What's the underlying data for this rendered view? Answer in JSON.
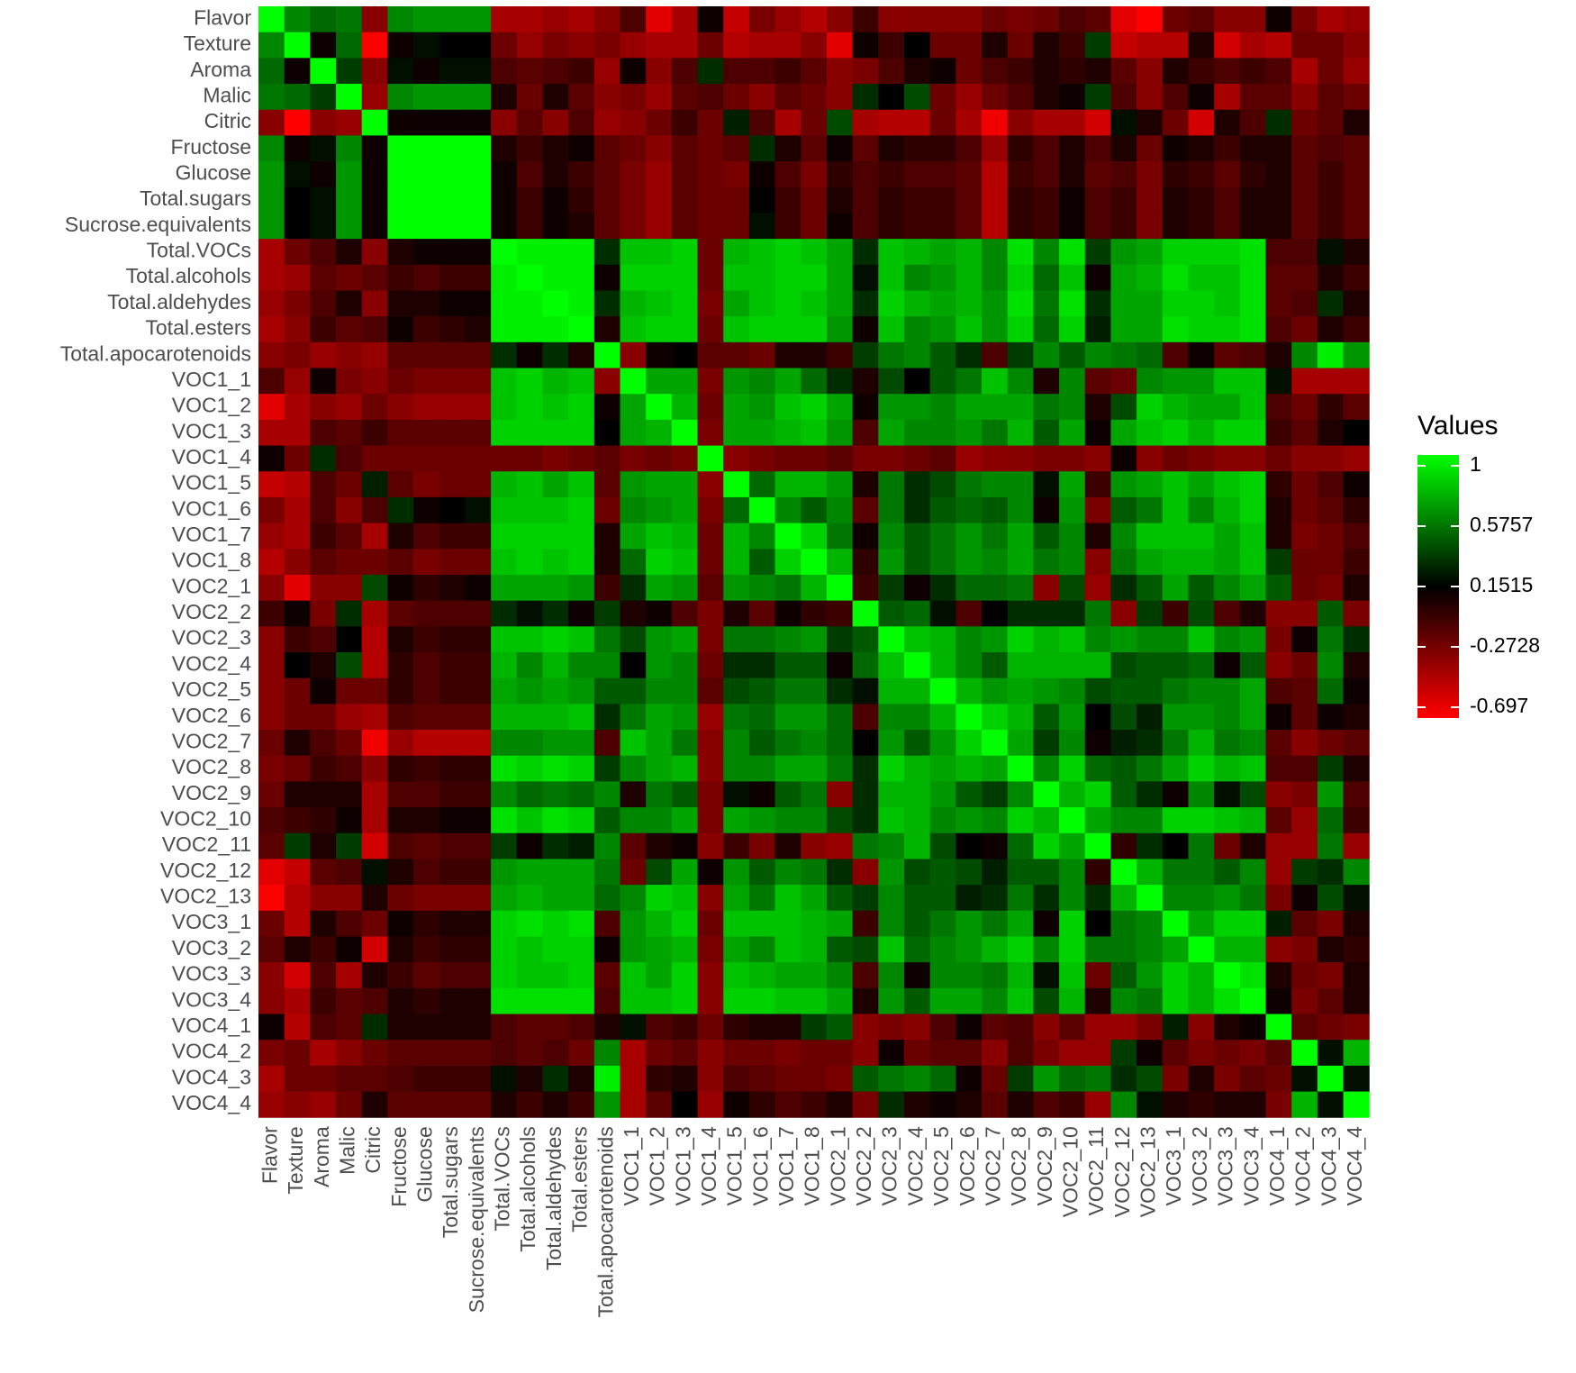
{
  "chart_data": {
    "type": "heatmap",
    "categories": [
      "Flavor",
      "Texture",
      "Aroma",
      "Malic",
      "Citric",
      "Fructose",
      "Glucose",
      "Total.sugars",
      "Sucrose.equivalents",
      "Total.VOCs",
      "Total.alcohols",
      "Total.aldehydes",
      "Total.esters",
      "Total.apocarotenoids",
      "VOC1_1",
      "VOC1_2",
      "VOC1_3",
      "VOC1_4",
      "VOC1_5",
      "VOC1_6",
      "VOC1_7",
      "VOC1_8",
      "VOC2_1",
      "VOC2_2",
      "VOC2_3",
      "VOC2_4",
      "VOC2_5",
      "VOC2_6",
      "VOC2_7",
      "VOC2_8",
      "VOC2_9",
      "VOC2_10",
      "VOC2_11",
      "VOC2_12",
      "VOC2_13",
      "VOC3_1",
      "VOC3_2",
      "VOC3_3",
      "VOC3_4",
      "VOC4_1",
      "VOC4_2",
      "VOC4_3",
      "VOC4_4"
    ],
    "values": [
      [
        1,
        0.6,
        0.5,
        0.55,
        -0.3,
        0.6,
        0.65,
        0.65,
        0.65,
        -0.4,
        -0.4,
        -0.35,
        -0.4,
        -0.3,
        -0.1,
        -0.6,
        -0.4,
        0.1,
        -0.5,
        -0.25,
        -0.35,
        -0.45,
        -0.3,
        -0.05,
        -0.3,
        -0.3,
        -0.3,
        -0.3,
        -0.2,
        -0.25,
        -0.2,
        -0.1,
        -0.15,
        -0.6,
        -0.7,
        -0.2,
        -0.15,
        -0.3,
        -0.3,
        0.1,
        -0.25,
        -0.4,
        -0.35
      ],
      [
        1,
        0.1,
        0.5,
        -0.7,
        0.1,
        0.2,
        0.15,
        0.15,
        -0.2,
        -0.35,
        -0.25,
        -0.3,
        -0.25,
        -0.35,
        -0.4,
        -0.4,
        -0.2,
        -0.45,
        -0.4,
        -0.4,
        -0.3,
        -0.6,
        0.1,
        -0.05,
        0.15,
        -0.2,
        -0.2,
        0.05,
        -0.2,
        0.05,
        -0.05,
        0.35,
        -0.5,
        -0.45,
        -0.45,
        0.05,
        -0.55,
        -0.4,
        -0.45,
        -0.2,
        -0.2,
        -0.3
      ],
      [
        1,
        0.35,
        -0.3,
        0.2,
        0.1,
        0.2,
        0.2,
        -0.1,
        -0.15,
        -0.1,
        -0.05,
        -0.35,
        0.1,
        -0.3,
        -0.1,
        0.3,
        -0.1,
        -0.1,
        -0.05,
        -0.15,
        -0.3,
        -0.25,
        -0.1,
        0.05,
        0.1,
        -0.2,
        -0.1,
        -0.05,
        0.05,
        0,
        0.05,
        -0.15,
        -0.3,
        0.05,
        -0.05,
        -0.1,
        -0.05,
        -0.1,
        -0.4,
        -0.2,
        -0.35
      ],
      [
        1,
        -0.35,
        0.6,
        0.65,
        0.65,
        0.65,
        0.05,
        -0.2,
        0.05,
        -0.15,
        -0.3,
        -0.25,
        -0.35,
        -0.15,
        -0.1,
        -0.2,
        -0.3,
        -0.15,
        -0.2,
        -0.3,
        0.3,
        0.15,
        0.4,
        -0.2,
        -0.35,
        -0.2,
        -0.1,
        0.05,
        0.1,
        0.35,
        -0.1,
        -0.3,
        -0.1,
        0.1,
        -0.4,
        -0.15,
        -0.15,
        -0.3,
        -0.15,
        -0.2
      ],
      [
        1,
        0.1,
        0.1,
        0.1,
        0.1,
        -0.3,
        -0.15,
        -0.3,
        -0.1,
        -0.35,
        -0.3,
        -0.2,
        -0.05,
        -0.2,
        0.25,
        -0.1,
        -0.4,
        -0.2,
        0.4,
        -0.4,
        -0.45,
        -0.45,
        -0.2,
        -0.4,
        -0.65,
        -0.3,
        -0.4,
        -0.4,
        -0.55,
        0.2,
        0.05,
        -0.2,
        -0.55,
        0.05,
        -0.1,
        0.3,
        -0.2,
        -0.15,
        0.05
      ],
      [
        1,
        1,
        1,
        1,
        0.05,
        -0.05,
        0.05,
        0.1,
        -0.15,
        -0.2,
        -0.3,
        -0.15,
        -0.2,
        -0.15,
        0.3,
        0.05,
        -0.15,
        0.1,
        -0.15,
        0.05,
        0,
        0,
        -0.1,
        -0.35,
        0,
        -0.1,
        0.05,
        -0.1,
        0.05,
        -0.2,
        0.1,
        0.05,
        -0.05,
        0.05,
        0.05,
        -0.15,
        -0.1,
        -0.15
      ],
      [
        1,
        1,
        1,
        0.1,
        -0.1,
        0.05,
        -0.05,
        -0.15,
        -0.25,
        -0.35,
        -0.15,
        -0.2,
        -0.25,
        0.1,
        -0.1,
        -0.25,
        0,
        -0.1,
        -0.05,
        -0.1,
        -0.1,
        -0.15,
        -0.45,
        -0.05,
        -0.1,
        0.05,
        -0.15,
        -0.1,
        -0.25,
        0,
        -0.05,
        -0.15,
        0,
        0.05,
        -0.15,
        -0.05,
        -0.15
      ],
      [
        1,
        1,
        0.1,
        -0.05,
        0.1,
        0,
        -0.15,
        -0.25,
        -0.35,
        -0.15,
        -0.2,
        -0.2,
        0.15,
        -0.05,
        -0.2,
        0.05,
        -0.1,
        0,
        -0.05,
        -0.05,
        -0.15,
        -0.45,
        0,
        -0.05,
        0.1,
        -0.1,
        -0.05,
        -0.25,
        0.05,
        0,
        -0.1,
        0.05,
        0.05,
        -0.15,
        -0.05,
        -0.15
      ],
      [
        1,
        0.1,
        -0.05,
        0.1,
        0.05,
        -0.15,
        -0.25,
        -0.35,
        -0.15,
        -0.2,
        -0.2,
        0.2,
        -0.05,
        -0.2,
        0.1,
        -0.1,
        0,
        -0.05,
        -0.05,
        -0.15,
        -0.45,
        0,
        -0.05,
        0.1,
        -0.1,
        -0.05,
        -0.25,
        0.05,
        0,
        -0.1,
        0.05,
        0.05,
        -0.15,
        -0.05,
        -0.15
      ],
      [
        1,
        0.95,
        0.95,
        0.95,
        0.3,
        0.8,
        0.8,
        0.85,
        -0.2,
        0.75,
        0.8,
        0.85,
        0.8,
        0.7,
        0.3,
        0.8,
        0.75,
        0.7,
        0.75,
        0.6,
        0.9,
        0.6,
        0.9,
        0.35,
        0.65,
        0.7,
        0.85,
        0.85,
        0.85,
        0.9,
        -0.1,
        -0.1,
        0.2,
        0.05
      ],
      [
        1,
        0.95,
        0.95,
        0.1,
        0.85,
        0.85,
        0.85,
        -0.2,
        0.8,
        0.8,
        0.85,
        0.85,
        0.7,
        0.2,
        0.8,
        0.6,
        0.65,
        0.75,
        0.6,
        0.85,
        0.5,
        0.8,
        0.1,
        0.7,
        0.75,
        0.9,
        0.8,
        0.8,
        0.9,
        -0.15,
        -0.15,
        0.05,
        -0.05
      ],
      [
        1,
        0.95,
        0.3,
        0.75,
        0.8,
        0.85,
        -0.25,
        0.7,
        0.8,
        0.85,
        0.8,
        0.7,
        0.3,
        0.85,
        0.75,
        0.7,
        0.75,
        0.65,
        0.9,
        0.55,
        0.9,
        0.3,
        0.7,
        0.7,
        0.85,
        0.85,
        0.8,
        0.9,
        -0.15,
        -0.1,
        0.3,
        0.05
      ],
      [
        1,
        0.05,
        0.8,
        0.85,
        0.85,
        -0.2,
        0.8,
        0.85,
        0.85,
        0.85,
        0.65,
        0.1,
        0.8,
        0.6,
        0.65,
        0.8,
        0.65,
        0.85,
        0.5,
        0.85,
        0.25,
        0.7,
        0.7,
        0.9,
        0.85,
        0.85,
        0.9,
        -0.1,
        -0.2,
        0.05,
        -0.05
      ],
      [
        1,
        -0.3,
        0.1,
        0.15,
        -0.15,
        -0.15,
        -0.2,
        0.05,
        0.05,
        -0.05,
        0.35,
        0.55,
        0.6,
        0.45,
        0.3,
        -0.1,
        0.35,
        0.6,
        0.45,
        0.6,
        0.55,
        0.5,
        -0.1,
        0.1,
        -0.15,
        -0.1,
        0.05,
        0.6,
        0.95,
        0.65
      ],
      [
        1,
        0.7,
        0.7,
        -0.25,
        0.65,
        0.6,
        0.7,
        0.5,
        0.3,
        0.05,
        0.4,
        0.15,
        0.45,
        0.55,
        0.8,
        0.6,
        0.05,
        0.6,
        -0.15,
        -0.2,
        0.6,
        0.65,
        0.65,
        0.8,
        0.8,
        0.2,
        -0.4,
        -0.4,
        -0.4
      ],
      [
        1,
        0.75,
        -0.2,
        0.7,
        0.65,
        0.8,
        0.85,
        0.7,
        0.1,
        0.65,
        0.65,
        0.6,
        0.7,
        0.7,
        0.7,
        0.55,
        0.6,
        0.05,
        0.4,
        0.85,
        0.75,
        0.7,
        0.7,
        0.8,
        -0.1,
        -0.2,
        0,
        -0.15
      ],
      [
        1,
        -0.25,
        0.7,
        0.7,
        0.75,
        0.8,
        0.65,
        -0.1,
        0.7,
        0.6,
        0.6,
        0.65,
        0.55,
        0.75,
        0.45,
        0.7,
        0.1,
        0.7,
        0.8,
        0.85,
        0.75,
        0.85,
        0.85,
        -0.05,
        -0.15,
        0.05,
        0.15
      ],
      [
        1,
        -0.3,
        -0.25,
        -0.2,
        -0.2,
        -0.15,
        -0.25,
        -0.25,
        -0.2,
        -0.15,
        -0.35,
        -0.3,
        -0.3,
        -0.25,
        -0.25,
        -0.3,
        0.1,
        -0.3,
        -0.2,
        -0.25,
        -0.3,
        -0.3,
        -0.2,
        -0.3,
        -0.3,
        -0.35
      ],
      [
        1,
        0.5,
        0.75,
        0.75,
        0.65,
        0.05,
        0.55,
        0.3,
        0.4,
        0.55,
        0.6,
        0.6,
        0.2,
        0.7,
        -0.05,
        0.65,
        0.7,
        0.8,
        0.7,
        0.8,
        0.85,
        0,
        -0.2,
        -0.1,
        0.1
      ],
      [
        1,
        0.6,
        0.45,
        0.6,
        -0.15,
        0.55,
        0.3,
        0.45,
        0.5,
        0.45,
        0.6,
        0.1,
        0.65,
        -0.25,
        0.45,
        0.55,
        0.8,
        0.6,
        0.75,
        0.85,
        0.05,
        -0.2,
        -0.15,
        0
      ],
      [
        1,
        0.85,
        0.55,
        0.1,
        0.6,
        0.45,
        0.55,
        0.65,
        0.55,
        0.7,
        0.45,
        0.6,
        0.05,
        0.6,
        0.8,
        0.8,
        0.8,
        0.7,
        0.8,
        0.05,
        -0.25,
        -0.2,
        -0.1
      ],
      [
        1,
        0.75,
        0,
        0.65,
        0.45,
        0.55,
        0.65,
        0.6,
        0.7,
        0.55,
        0.6,
        -0.3,
        0.55,
        0.7,
        0.75,
        0.75,
        0.7,
        0.8,
        0.35,
        -0.2,
        -0.2,
        -0.05
      ],
      [
        1,
        -0.05,
        0.35,
        0.1,
        0.3,
        0.5,
        0.5,
        0.55,
        -0.3,
        0.4,
        -0.35,
        0.3,
        0.45,
        0.7,
        0.45,
        0.6,
        0.7,
        0.45,
        -0.2,
        -0.25,
        0.05
      ],
      [
        1,
        0.45,
        0.5,
        0.2,
        -0.1,
        0.15,
        0.3,
        0.3,
        0.3,
        0.55,
        -0.3,
        0.35,
        -0.05,
        0.4,
        -0.1,
        0.05,
        -0.3,
        -0.3,
        0.45,
        -0.25
      ],
      [
        1,
        0.8,
        0.75,
        0.6,
        0.65,
        0.85,
        0.75,
        0.8,
        0.6,
        0.65,
        0.6,
        0.6,
        0.8,
        0.6,
        0.65,
        -0.25,
        0.1,
        0.55,
        0.3
      ],
      [
        1,
        0.75,
        0.6,
        0.45,
        0.75,
        0.75,
        0.75,
        0.75,
        0.4,
        0.45,
        0.45,
        0.5,
        0.1,
        0.45,
        -0.3,
        -0.2,
        0.6,
        0.05
      ],
      [
        1,
        0.75,
        0.65,
        0.7,
        0.65,
        0.6,
        0.4,
        0.45,
        0.45,
        0.55,
        0.6,
        0.6,
        0.7,
        -0.1,
        -0.15,
        0.5,
        0.1
      ],
      [
        1,
        0.85,
        0.75,
        0.45,
        0.65,
        0.15,
        0.4,
        0.25,
        0.65,
        0.65,
        0.6,
        0.7,
        0.1,
        -0.15,
        0.1,
        0.05
      ],
      [
        1,
        0.7,
        0.35,
        0.6,
        0.1,
        0.25,
        0.3,
        0.55,
        0.75,
        0.55,
        0.6,
        -0.15,
        -0.3,
        -0.2,
        -0.15
      ],
      [
        1,
        0.6,
        0.85,
        0.5,
        0.45,
        0.55,
        0.7,
        0.85,
        0.75,
        0.8,
        -0.1,
        -0.1,
        0.35,
        0.05
      ],
      [
        1,
        0.75,
        0.85,
        0.45,
        0.3,
        0.1,
        0.6,
        0.2,
        0.4,
        -0.3,
        -0.25,
        0.65,
        -0.1
      ],
      [
        1,
        0.7,
        0.6,
        0.6,
        0.85,
        0.85,
        0.8,
        0.75,
        -0.15,
        -0.35,
        0.5,
        -0.05
      ],
      [
        1,
        0,
        0.3,
        0.15,
        0.55,
        -0.2,
        0.05,
        -0.35,
        -0.35,
        0.55,
        -0.35
      ],
      [
        1,
        0.75,
        0.55,
        0.55,
        0.45,
        0.6,
        -0.35,
        0.35,
        0.3,
        0.6
      ],
      [
        1,
        0.6,
        0.6,
        0.65,
        0.55,
        -0.25,
        0.1,
        0.4,
        0.2
      ],
      [
        1,
        0.7,
        0.85,
        0.85,
        0.25,
        -0.15,
        -0.25,
        0.05
      ],
      [
        1,
        0.75,
        0.75,
        -0.3,
        -0.25,
        0.05,
        0
      ],
      [
        1,
        0.9,
        0.05,
        -0.2,
        -0.25,
        0.05
      ],
      [
        1,
        0.1,
        -0.25,
        -0.15,
        0.05
      ],
      [
        1,
        -0.15,
        -0.2,
        -0.25
      ],
      [
        1,
        0.2,
        0.75
      ],
      [
        1,
        0.2
      ],
      [
        1
      ]
    ],
    "legend_title": "Values",
    "clim": [
      -0.697,
      1
    ],
    "colorbar_ticks": [
      1,
      0.5757,
      0.1515,
      -0.2728,
      -0.697
    ],
    "colors": [
      "#ff0000",
      "#000000",
      "#00ff00"
    ]
  }
}
